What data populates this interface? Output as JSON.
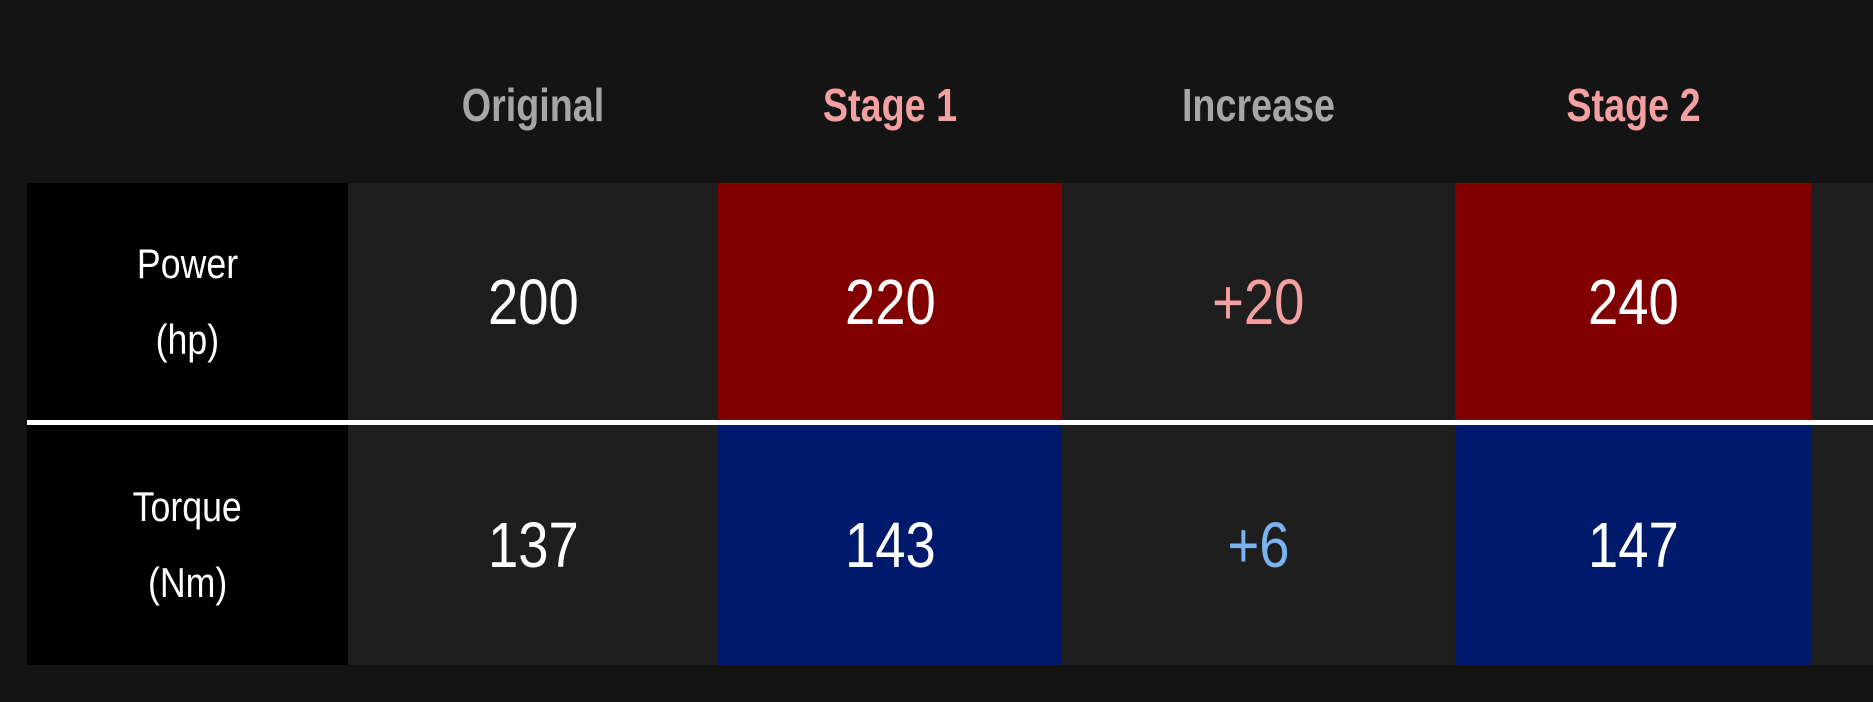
{
  "header": {
    "columns": [
      "Original",
      "Stage 1",
      "Increase",
      "Stage 2"
    ]
  },
  "rows": [
    {
      "label": "Power",
      "unit": "(hp)",
      "cells": [
        "200",
        "220",
        "+20",
        "240"
      ]
    },
    {
      "label": "Torque",
      "unit": "(Nm)",
      "cells": [
        "137",
        "143",
        "+6",
        "147"
      ]
    }
  ]
}
